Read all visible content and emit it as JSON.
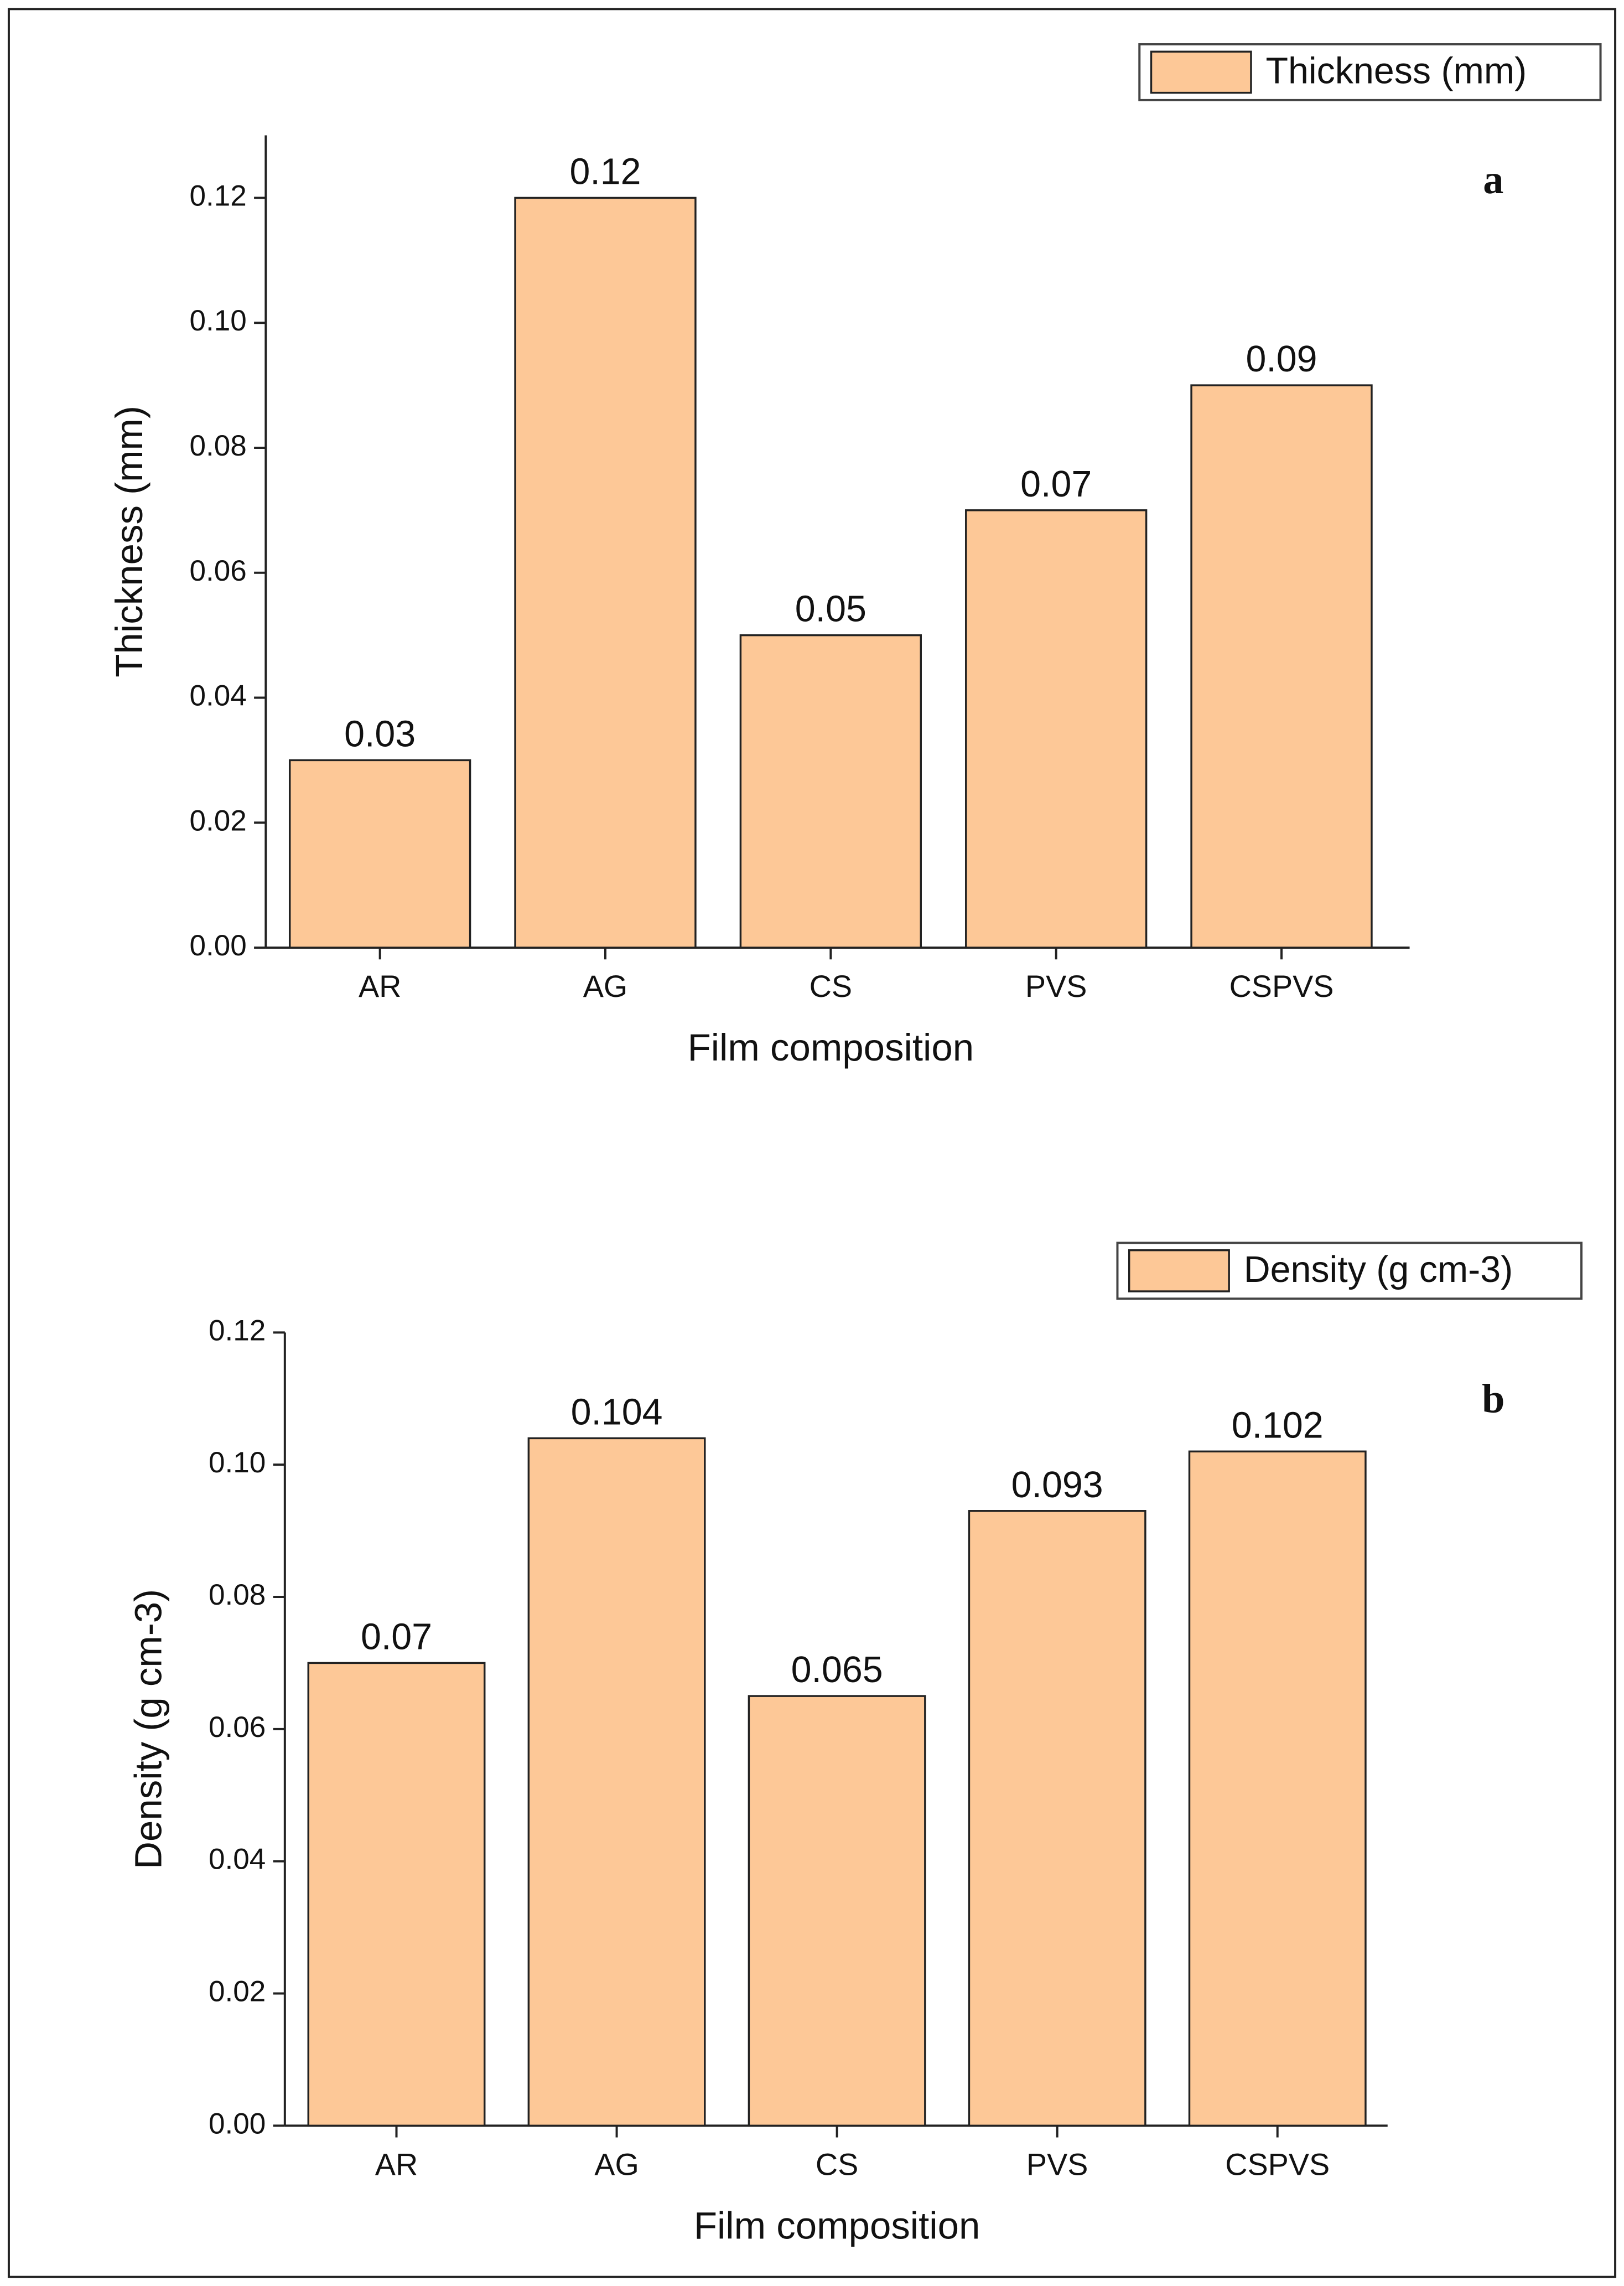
{
  "chart_data": [
    {
      "type": "bar",
      "panel_label": "a",
      "x_label": "Film composition",
      "y_label": "Thickness (mm)",
      "categories": [
        "AR",
        "AG",
        "CS",
        "PVS",
        "CSPVS"
      ],
      "series": [
        {
          "name": "Thickness (mm)",
          "color": "#fdc897",
          "values": [
            0.03,
            0.12,
            0.05,
            0.07,
            0.09
          ]
        }
      ],
      "ylim": [
        0,
        0.13
      ],
      "yticks": [
        {
          "value": 0,
          "label": "0.00"
        },
        {
          "value": 0.02,
          "label": "0.02"
        },
        {
          "value": 0.04,
          "label": "0.04"
        },
        {
          "value": 0.06,
          "label": "0.06"
        },
        {
          "value": 0.08,
          "label": "0.08"
        },
        {
          "value": 0.1,
          "label": "0.10"
        },
        {
          "value": 0.12,
          "label": "0.12"
        }
      ]
    },
    {
      "type": "bar",
      "panel_label": "b",
      "x_label": "Film composition",
      "y_label": "Density (g cm-3)",
      "categories": [
        "AR",
        "AG",
        "CS",
        "PVS",
        "CSPVS"
      ],
      "series": [
        {
          "name": "Density (g cm-3)",
          "color": "#fdc897",
          "values": [
            0.07,
            0.104,
            0.065,
            0.093,
            0.102
          ]
        }
      ],
      "ylim": [
        0,
        0.12
      ],
      "yticks": [
        {
          "value": 0,
          "label": "0.00"
        },
        {
          "value": 0.02,
          "label": "0.02"
        },
        {
          "value": 0.04,
          "label": "0.04"
        },
        {
          "value": 0.06,
          "label": "0.06"
        },
        {
          "value": 0.08,
          "label": "0.08"
        },
        {
          "value": 0.1,
          "label": "0.10"
        },
        {
          "value": 0.12,
          "label": "0.12"
        }
      ]
    }
  ]
}
